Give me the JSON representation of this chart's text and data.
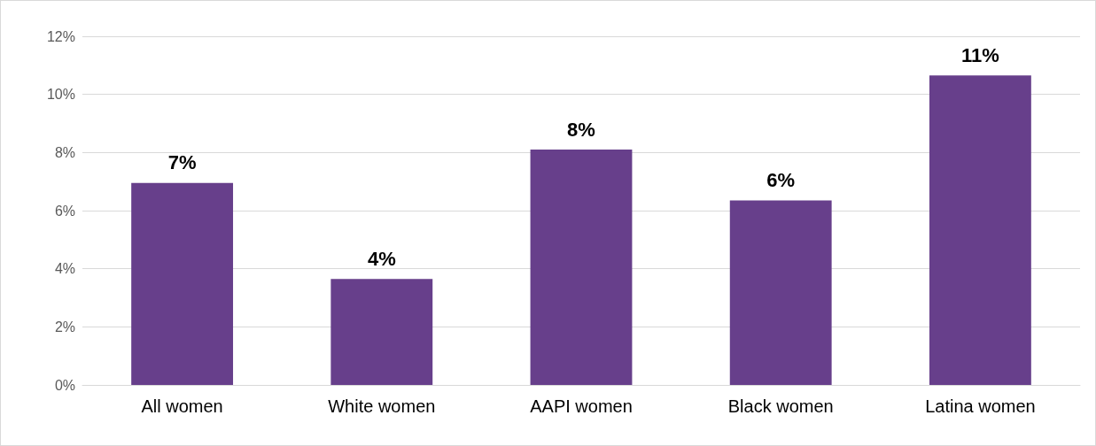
{
  "chart_data": {
    "type": "bar",
    "categories": [
      "All women",
      "White women",
      "AAPI women",
      "Black women",
      "Latina women"
    ],
    "values": [
      6.95,
      3.65,
      8.1,
      6.35,
      10.65
    ],
    "value_labels": [
      "7%",
      "4%",
      "8%",
      "6%",
      "11%"
    ],
    "color": "#673f8b",
    "ylim": [
      0,
      12
    ],
    "yticks": [
      {
        "value": 0,
        "label": "0%"
      },
      {
        "value": 2,
        "label": "2%"
      },
      {
        "value": 4,
        "label": "4%"
      },
      {
        "value": 6,
        "label": "6%"
      },
      {
        "value": 8,
        "label": "8%"
      },
      {
        "value": 10,
        "label": "10%"
      },
      {
        "value": 12,
        "label": "12%"
      }
    ],
    "grid": "y"
  }
}
